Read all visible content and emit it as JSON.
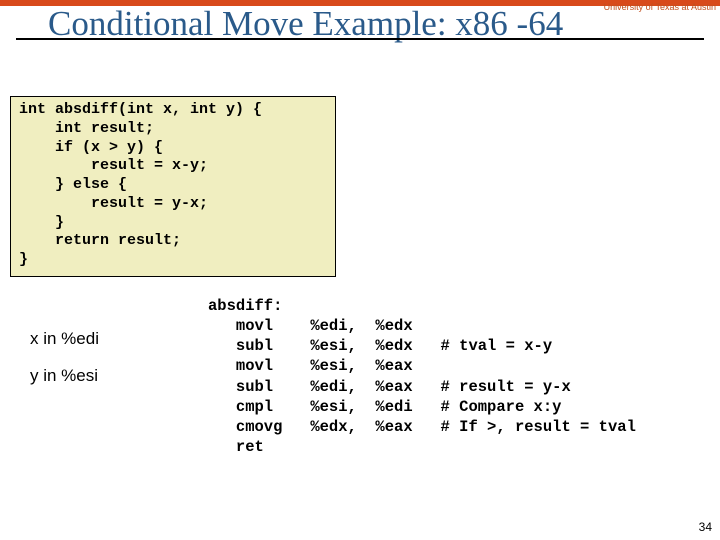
{
  "colors": {
    "top_bar": "#d84a1b",
    "title_color": "#2a5a8a",
    "code_bg": "#f0eec0",
    "code_border": "#000000",
    "text": "#000000",
    "header_text_color": "#c05020",
    "background": "#ffffff"
  },
  "header": {
    "institution": "University of Texas at Austin"
  },
  "title": "Conditional Move Example: x86 -64",
  "c_code": "int absdiff(int x, int y) {\n    int result;\n    if (x > y) {\n        result = x-y;\n    } else {\n        result = y-x;\n    }\n    return result;\n}",
  "register_notes": {
    "x": "x in %edi",
    "y": "y in %esi"
  },
  "assembly": "absdiff:\n   movl    %edi,  %edx\n   subl    %esi,  %edx   # tval = x-y\n   movl    %esi,  %eax\n   subl    %edi,  %eax   # result = y-x\n   cmpl    %esi,  %edi   # Compare x:y\n   cmovg   %edx,  %eax   # If >, result = tval\n   ret",
  "slide_number": "34",
  "typography": {
    "title_font": "Georgia",
    "title_size_pt": 26,
    "code_font": "Courier New",
    "code_size_pt": 11,
    "body_font": "Arial"
  }
}
